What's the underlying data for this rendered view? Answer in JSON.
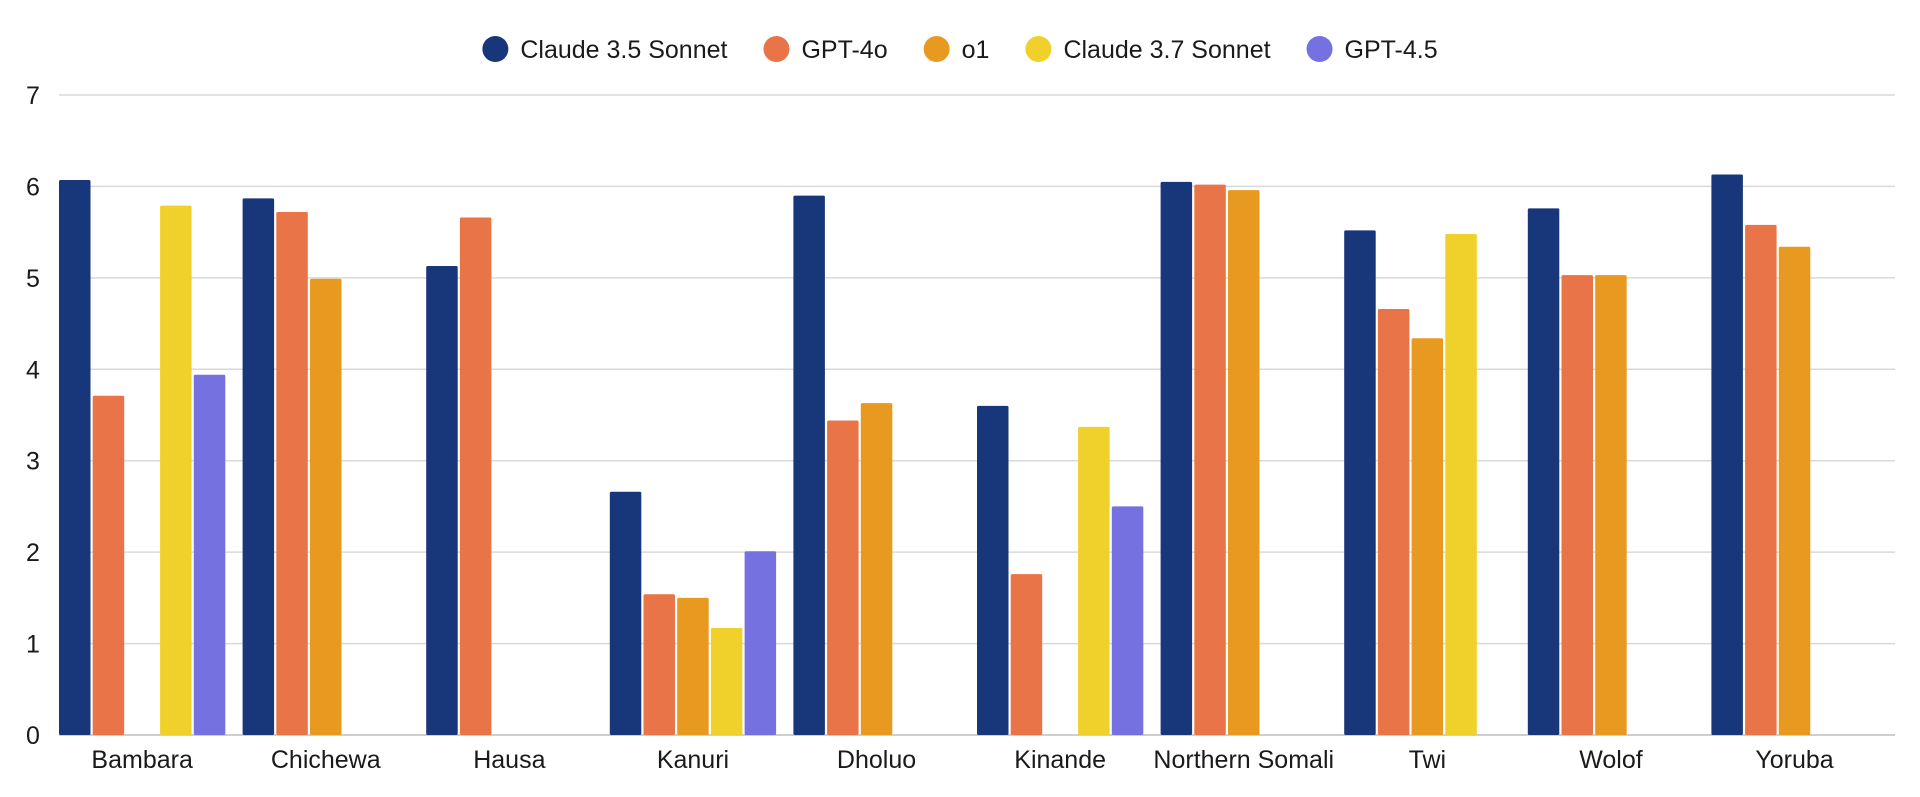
{
  "chart_data": {
    "type": "bar",
    "title": "",
    "xlabel": "",
    "ylabel": "",
    "ylim": [
      0,
      7
    ],
    "yticks": [
      0,
      1,
      2,
      3,
      4,
      5,
      6,
      7
    ],
    "grid": true,
    "legend_position": "top-center",
    "categories": [
      "Bambara",
      "Chichewa",
      "Hausa",
      "Kanuri",
      "Dholuo",
      "Kinande",
      "Northern Somali",
      "Twi",
      "Wolof",
      "Yoruba"
    ],
    "series": [
      {
        "name": "Claude 3.5 Sonnet",
        "color": "#17377a",
        "values": [
          6.07,
          5.87,
          5.13,
          2.66,
          5.9,
          3.6,
          6.05,
          5.52,
          5.76,
          6.13
        ]
      },
      {
        "name": "GPT-4o",
        "color": "#e87447",
        "values": [
          3.71,
          5.72,
          5.66,
          1.54,
          3.44,
          1.76,
          6.02,
          4.66,
          5.03,
          5.58
        ]
      },
      {
        "name": "o1",
        "color": "#e89a20",
        "values": [
          null,
          4.99,
          null,
          1.5,
          3.63,
          null,
          5.96,
          4.34,
          5.03,
          5.34
        ]
      },
      {
        "name": "Claude 3.7 Sonnet",
        "color": "#f0d02a",
        "values": [
          5.79,
          null,
          null,
          1.17,
          null,
          3.37,
          null,
          5.48,
          null,
          null
        ]
      },
      {
        "name": "GPT-4.5",
        "color": "#7571e0",
        "values": [
          3.94,
          null,
          null,
          2.01,
          null,
          2.5,
          null,
          null,
          null,
          null
        ]
      }
    ]
  }
}
